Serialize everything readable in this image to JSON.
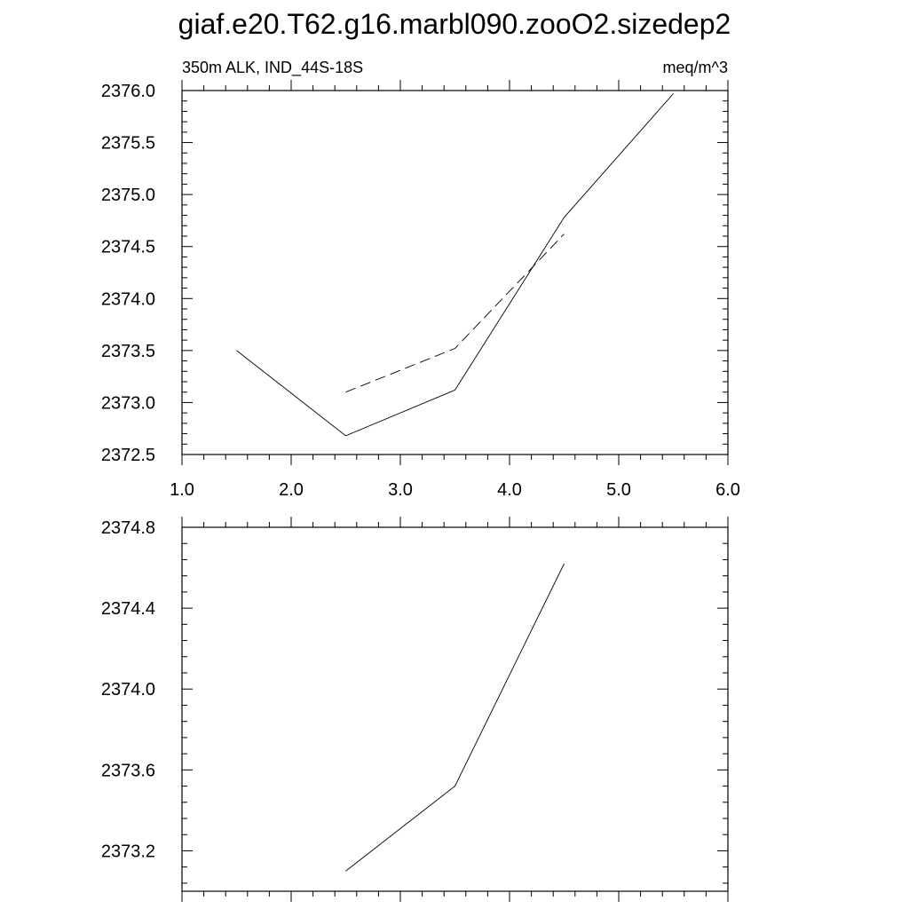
{
  "figure": {
    "title": "giaf.e20.T62.g16.marbl090.zooO2.sizedep2"
  },
  "chart_data": [
    {
      "type": "line",
      "title": "",
      "subtitle_left": "350m ALK, IND_44S-18S",
      "subtitle_right": "meq/m^3",
      "xlim": [
        1.0,
        6.0
      ],
      "ylim": [
        2372.5,
        2376.0
      ],
      "x_ticks": [
        1.0,
        2.0,
        3.0,
        4.0,
        5.0,
        6.0
      ],
      "x_tick_labels": [
        "1.0",
        "2.0",
        "3.0",
        "4.0",
        "5.0",
        "6.0"
      ],
      "y_ticks": [
        2372.5,
        2373.0,
        2373.5,
        2374.0,
        2374.5,
        2375.0,
        2375.5,
        2376.0
      ],
      "y_tick_labels": [
        "2372.5",
        "2373.0",
        "2373.5",
        "2374.0",
        "2374.5",
        "2375.0",
        "2375.5",
        "2376.0"
      ],
      "grid": false,
      "series": [
        {
          "style": "solid",
          "x": [
            1.5,
            2.5,
            3.5,
            4.5,
            5.5
          ],
          "y": [
            2373.5,
            2372.68,
            2373.12,
            2374.78,
            2375.97
          ]
        },
        {
          "style": "dashed",
          "x": [
            2.5,
            3.5,
            4.5
          ],
          "y": [
            2373.1,
            2373.52,
            2374.62
          ]
        }
      ]
    },
    {
      "type": "line",
      "title": "",
      "xlim": [
        1.0,
        6.0
      ],
      "ylim": [
        2373.0,
        2374.8
      ],
      "x_ticks": [
        1.0,
        2.0,
        3.0,
        4.0,
        5.0,
        6.0
      ],
      "x_tick_labels": [],
      "y_ticks": [
        2373.2,
        2373.6,
        2374.0,
        2374.4,
        2374.8
      ],
      "y_tick_labels": [
        "2373.2",
        "2373.6",
        "2374.0",
        "2374.4",
        "2374.8"
      ],
      "grid": false,
      "series": [
        {
          "style": "solid",
          "x": [
            2.5,
            3.5,
            4.5
          ],
          "y": [
            2373.1,
            2373.52,
            2374.62
          ]
        }
      ]
    }
  ]
}
